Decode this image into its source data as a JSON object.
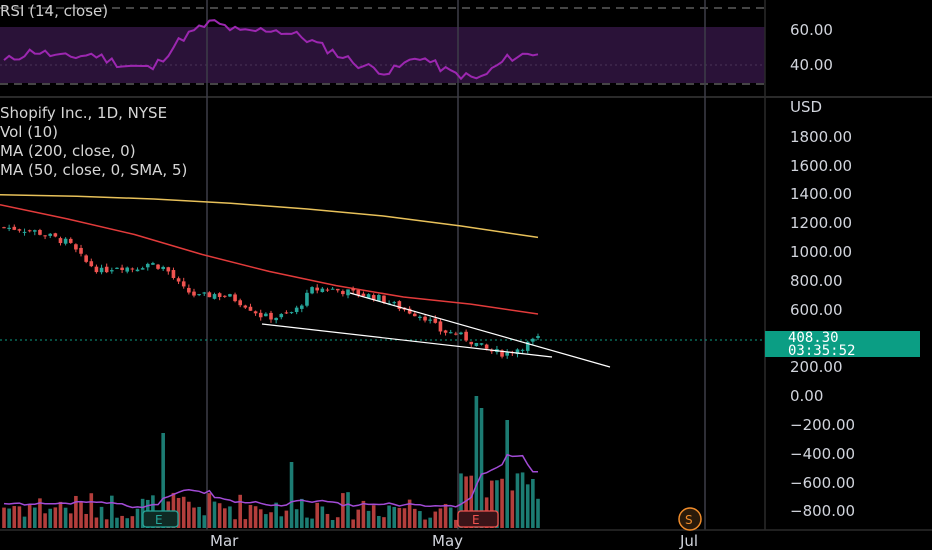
{
  "rsi_panel": {
    "label": "RSI (14, close)",
    "ticks": [
      "60.00",
      "40.00"
    ]
  },
  "legend": {
    "symbol": "Shopify Inc., 1D, NYSE",
    "vol": "Vol (10)",
    "ma200": "MA (200, close, 0)",
    "ma50": "MA (50, close, 0, SMA, 5)"
  },
  "price_axis": {
    "currency": "USD",
    "ticks": [
      "1800.00",
      "1600.00",
      "1400.00",
      "1200.00",
      "1000.00",
      "800.00",
      "600.00",
      "400.00",
      "200.00",
      "0.00",
      "−200.00",
      "−400.00",
      "−600.00",
      "−800.00"
    ]
  },
  "last_price": {
    "price": "408.30",
    "countdown": "03:35:52"
  },
  "time_axis": {
    "labels": [
      "Mar",
      "May",
      "Jul"
    ]
  },
  "events": {
    "earnings_1": "E",
    "earnings_2": "E",
    "split": "S"
  },
  "colors": {
    "up": "#26a69a",
    "down": "#ef5350",
    "ma200": "#e8c15a",
    "ma50": "#e23b3b",
    "rsi": "#9c27b0",
    "volume_ma": "#a24bd6",
    "trendline": "#ffffff",
    "accent": "#0b9e84"
  },
  "chart_data": {
    "type": "candlestick",
    "title": "Shopify Inc., 1D, NYSE",
    "ylabel": "USD",
    "ylim": [
      -900,
      1950
    ],
    "x_labels": [
      "Mar",
      "May",
      "Jul"
    ],
    "last_price": 408.3,
    "approx_close_path": [
      1190,
      1180,
      1160,
      1120,
      1080,
      950,
      880,
      920,
      900,
      940,
      900,
      760,
      700,
      720,
      700,
      640,
      560,
      560,
      600,
      750,
      760,
      740,
      720,
      700,
      650,
      600,
      560,
      460,
      440,
      380,
      320,
      300,
      350,
      408.3
    ],
    "moving_averages": [
      {
        "name": "MA (200, close, 0)",
        "values_approx": [
          1420,
          1410,
          1390,
          1360,
          1320,
          1270,
          1200,
          1120
        ]
      },
      {
        "name": "MA (50, close, 0, SMA, 5)",
        "values_approx": [
          1350,
          1250,
          1140,
          1000,
          880,
          780,
          700,
          650,
          580
        ]
      }
    ],
    "rsi": {
      "ticks": [
        60,
        40
      ],
      "values_approx": [
        42,
        48,
        44,
        46,
        40,
        38,
        55,
        64,
        58,
        60,
        56,
        48,
        40,
        36,
        45,
        36,
        32,
        44,
        47
      ]
    },
    "volume": {
      "notes": "volume bars at bottom with moving average overlay"
    }
  }
}
